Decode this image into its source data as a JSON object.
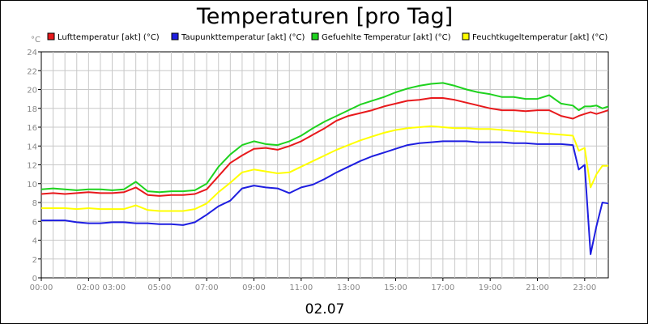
{
  "chart_data": {
    "type": "line",
    "title": "Temperaturen [pro Tag]",
    "xlabel": "02.07",
    "ylabel": "°C",
    "ylim": [
      0,
      24
    ],
    "yticks": [
      0,
      2,
      4,
      6,
      8,
      10,
      12,
      14,
      16,
      18,
      20,
      22,
      24
    ],
    "xlim": [
      "00:00",
      "24:00"
    ],
    "xtick_labels": [
      "00:00",
      "02:00 03:00",
      "05:00",
      "07:00",
      "09:00",
      "11:00",
      "13:00",
      "15:00",
      "17:00",
      "19:00",
      "21:00",
      "23:00"
    ],
    "grid": true,
    "legend_position": "top",
    "x": [
      "00:00",
      "00:30",
      "01:00",
      "01:30",
      "02:00",
      "02:30",
      "03:00",
      "03:30",
      "04:00",
      "04:30",
      "05:00",
      "05:30",
      "06:00",
      "06:30",
      "07:00",
      "07:30",
      "08:00",
      "08:30",
      "09:00",
      "09:30",
      "10:00",
      "10:30",
      "11:00",
      "11:30",
      "12:00",
      "12:30",
      "13:00",
      "13:30",
      "14:00",
      "14:30",
      "15:00",
      "15:30",
      "16:00",
      "16:30",
      "17:00",
      "17:30",
      "18:00",
      "18:30",
      "19:00",
      "19:30",
      "20:00",
      "20:30",
      "21:00",
      "21:30",
      "22:00",
      "22:30",
      "22:45",
      "23:00",
      "23:15",
      "23:30",
      "23:45",
      "24:00"
    ],
    "series": [
      {
        "name": "Lufttemperatur [akt] (°C)",
        "color": "#e8191c",
        "values": [
          8.9,
          9.0,
          8.9,
          9.0,
          9.1,
          9.0,
          9.0,
          9.1,
          9.6,
          8.8,
          8.7,
          8.8,
          8.8,
          8.9,
          9.4,
          10.8,
          12.2,
          13.0,
          13.7,
          13.8,
          13.6,
          14.0,
          14.5,
          15.2,
          15.9,
          16.7,
          17.2,
          17.5,
          17.8,
          18.2,
          18.5,
          18.8,
          18.9,
          19.1,
          19.1,
          18.9,
          18.6,
          18.3,
          18.0,
          17.8,
          17.8,
          17.7,
          17.8,
          17.8,
          17.2,
          16.9,
          17.2,
          17.4,
          17.6,
          17.4,
          17.6,
          17.8
        ]
      },
      {
        "name": "Taupunkttemperatur [akt] (°C)",
        "color": "#1e1ee0",
        "values": [
          6.1,
          6.1,
          6.1,
          5.9,
          5.8,
          5.8,
          5.9,
          5.9,
          5.8,
          5.8,
          5.7,
          5.7,
          5.6,
          5.9,
          6.7,
          7.6,
          8.2,
          9.5,
          9.8,
          9.6,
          9.5,
          9.0,
          9.6,
          9.9,
          10.5,
          11.2,
          11.8,
          12.4,
          12.9,
          13.3,
          13.7,
          14.1,
          14.3,
          14.4,
          14.5,
          14.5,
          14.5,
          14.4,
          14.4,
          14.4,
          14.3,
          14.3,
          14.2,
          14.2,
          14.2,
          14.1,
          11.5,
          12.0,
          2.5,
          5.5,
          8.0,
          7.9
        ]
      },
      {
        "name": "Gefuehlte Temperatur [akt] (°C)",
        "color": "#1ed21e",
        "values": [
          9.4,
          9.5,
          9.4,
          9.3,
          9.4,
          9.4,
          9.3,
          9.4,
          10.2,
          9.2,
          9.1,
          9.2,
          9.2,
          9.3,
          10.0,
          11.8,
          13.1,
          14.1,
          14.5,
          14.2,
          14.1,
          14.5,
          15.1,
          15.9,
          16.6,
          17.2,
          17.8,
          18.4,
          18.8,
          19.2,
          19.7,
          20.1,
          20.4,
          20.6,
          20.7,
          20.4,
          20.0,
          19.7,
          19.5,
          19.2,
          19.2,
          19.0,
          19.0,
          19.4,
          18.5,
          18.3,
          17.8,
          18.2,
          18.2,
          18.3,
          18.0,
          18.2
        ]
      },
      {
        "name": "Feuchtkugeltemperatur [akt] (°C)",
        "color": "#ffff00",
        "values": [
          7.4,
          7.4,
          7.4,
          7.3,
          7.4,
          7.3,
          7.3,
          7.3,
          7.7,
          7.2,
          7.1,
          7.1,
          7.1,
          7.3,
          7.9,
          9.1,
          10.1,
          11.2,
          11.5,
          11.3,
          11.1,
          11.2,
          11.8,
          12.4,
          13.0,
          13.6,
          14.1,
          14.6,
          15.0,
          15.4,
          15.7,
          15.9,
          16.0,
          16.1,
          16.0,
          15.9,
          15.9,
          15.8,
          15.8,
          15.7,
          15.6,
          15.5,
          15.4,
          15.3,
          15.2,
          15.1,
          13.5,
          13.8,
          9.6,
          11.0,
          11.9,
          11.9
        ]
      }
    ]
  }
}
